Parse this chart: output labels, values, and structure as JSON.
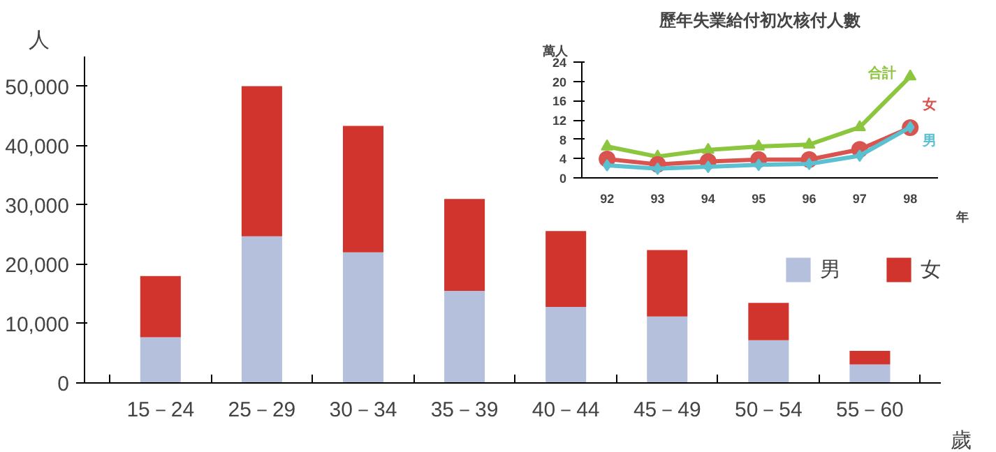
{
  "chart_data": [
    {
      "type": "bar",
      "stacked": true,
      "ylabel": "人",
      "xlabel": "歲",
      "categories": [
        "15－24",
        "25－29",
        "30－34",
        "35－39",
        "40－44",
        "45－49",
        "50－54",
        "55－60"
      ],
      "series": [
        {
          "name": "男",
          "color": "#b4c0dc",
          "values": [
            7700,
            24700,
            22000,
            15500,
            12800,
            11200,
            7200,
            3100
          ]
        },
        {
          "name": "女",
          "color": "#d0342c",
          "values": [
            10300,
            25300,
            21300,
            15500,
            12800,
            11200,
            6300,
            2300
          ]
        }
      ],
      "ylim": [
        0,
        55000
      ],
      "yticks": [
        0,
        {
          "value": 10000,
          "label": "10,000"
        },
        {
          "value": 20000,
          "label": "20,000"
        },
        {
          "value": 30000,
          "label": "30,000"
        },
        {
          "value": 40000,
          "label": "40,000"
        },
        {
          "value": 50000,
          "label": "50,000"
        }
      ],
      "grid": false,
      "legend": "right"
    },
    {
      "type": "line",
      "title": "歷年失業給付初次核付人數",
      "ylabel": "萬人",
      "xlabel": "年",
      "x": [
        92,
        93,
        94,
        95,
        96,
        97,
        98
      ],
      "series": [
        {
          "name": "合計",
          "color": "#8cc63f",
          "marker": "triangle",
          "values": [
            6.5,
            4.4,
            5.8,
            6.5,
            6.9,
            10.5,
            21
          ]
        },
        {
          "name": "女",
          "color": "#d9534f",
          "marker": "circle",
          "values": [
            3.9,
            2.8,
            3.4,
            3.8,
            3.8,
            5.9,
            10.4
          ]
        },
        {
          "name": "男",
          "color": "#5bc0d0",
          "marker": "diamond",
          "values": [
            2.6,
            1.9,
            2.3,
            2.7,
            2.9,
            4.6,
            10.5
          ]
        }
      ],
      "xlim": [
        91.5,
        98.55
      ],
      "xticks": [
        92,
        93,
        94,
        95,
        96,
        97,
        98
      ],
      "ylim": [
        0,
        24
      ],
      "yticks": [
        0,
        4,
        8,
        12,
        16,
        20,
        24
      ],
      "grid": false,
      "legend": false
    }
  ]
}
